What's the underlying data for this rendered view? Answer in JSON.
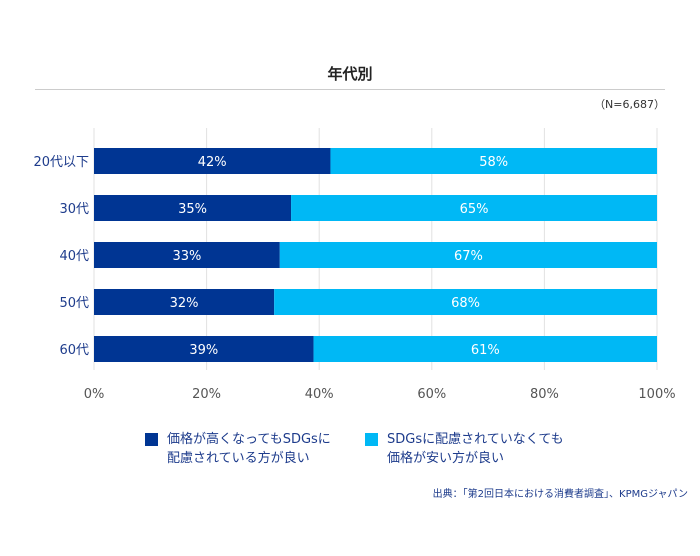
{
  "title": "年代別",
  "sample_note": "（N=6,687）",
  "colors": {
    "dark": "#003593",
    "light": "#00b8f5",
    "label": "#1e3c8c"
  },
  "legend": [
    {
      "line1": "価格が高くなってもSDGsに",
      "line2": "配慮されている方が良い"
    },
    {
      "line1": "SDGsに配慮されていなくても",
      "line2": "価格が安い方が良い"
    }
  ],
  "source": "出典：「第2回日本における消費者調査」、KPMGジャパン",
  "chart_data": {
    "type": "bar",
    "orientation": "horizontal",
    "stacked": true,
    "categories": [
      "20代以下",
      "30代",
      "40代",
      "50代",
      "60代"
    ],
    "series": [
      {
        "name": "価格が高くなってもSDGsに配慮されている方が良い",
        "values": [
          42,
          35,
          33,
          32,
          39
        ]
      },
      {
        "name": "SDGsに配慮されていなくても価格が安い方が良い",
        "values": [
          58,
          65,
          67,
          68,
          61
        ]
      }
    ],
    "data_labels": [
      [
        "42%",
        "35%",
        "33%",
        "32%",
        "39%"
      ],
      [
        "58%",
        "65%",
        "67%",
        "68%",
        "61%"
      ]
    ],
    "xlim": [
      0,
      100
    ],
    "xticks": [
      "0%",
      "20%",
      "40%",
      "60%",
      "80%",
      "100%"
    ],
    "grid": true,
    "legend_position": "bottom"
  }
}
